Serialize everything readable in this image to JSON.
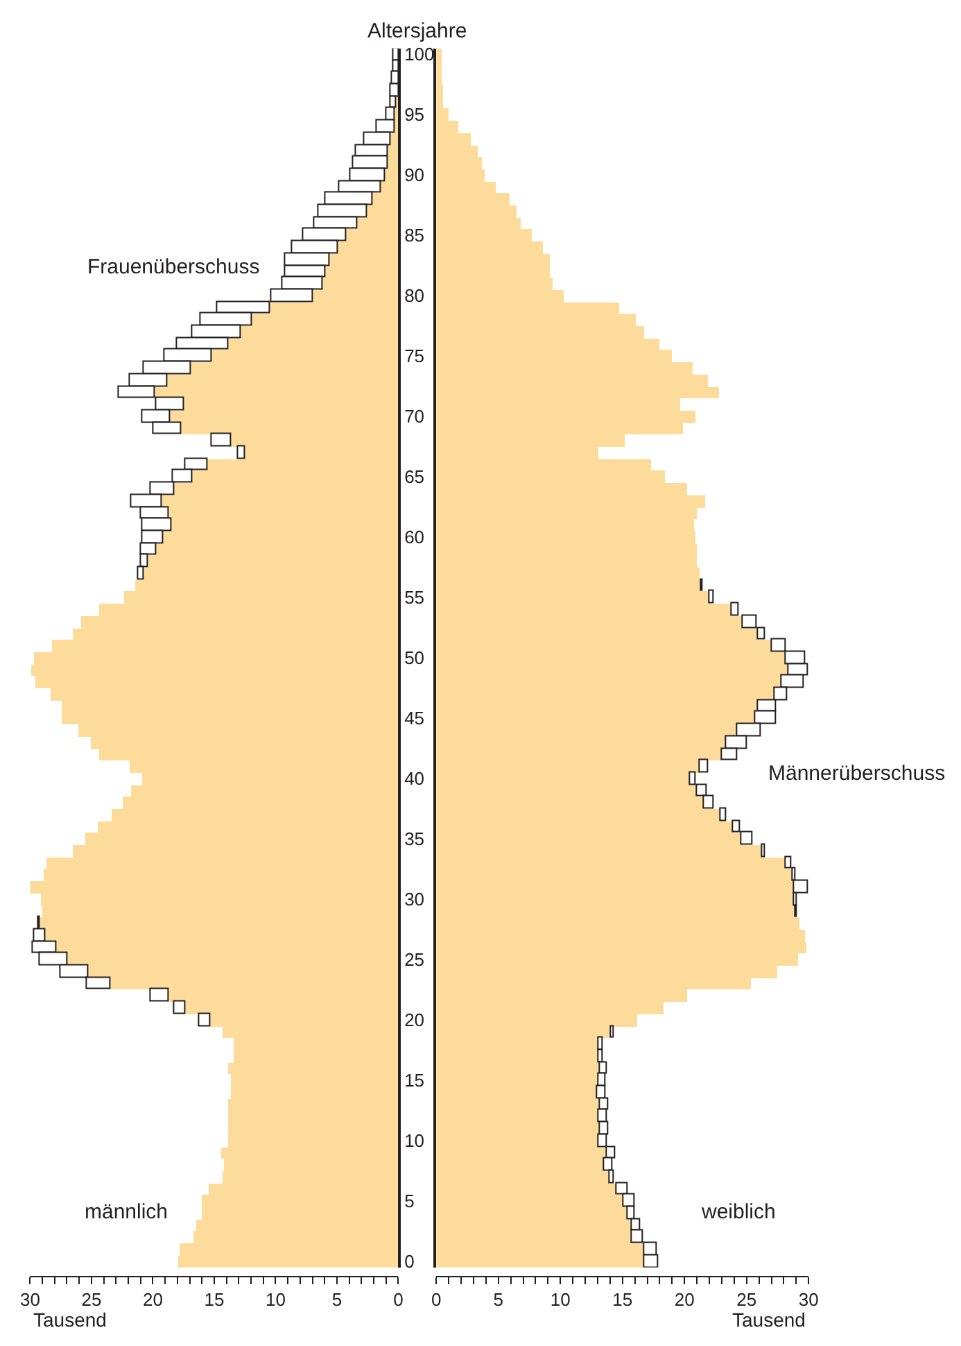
{
  "chart_data": [
    {
      "type": "bar",
      "orientation": "horizontal",
      "stacked": true,
      "xlabel": "Tausend",
      "ylabel": "Altersjahre",
      "categories": [
        "100",
        null,
        null,
        null,
        null,
        "95",
        null,
        null,
        null,
        null,
        "90",
        null,
        null,
        null,
        null,
        "85",
        null,
        null,
        null,
        null,
        "80",
        null,
        null,
        null,
        null,
        "75",
        null,
        null,
        null,
        null,
        "70",
        null,
        null,
        null,
        null,
        "65",
        null,
        null,
        null,
        null,
        "60",
        null,
        null,
        null,
        null,
        "55",
        null,
        null,
        null,
        null,
        "50",
        null,
        null,
        null,
        null,
        "45",
        null,
        null,
        null,
        null,
        "40",
        null,
        null,
        null,
        null,
        "35",
        null,
        null,
        null,
        null,
        "30",
        null,
        null,
        null,
        null,
        "25",
        null,
        null,
        null,
        null,
        "20",
        null,
        null,
        null,
        null,
        "15",
        null,
        null,
        null,
        null,
        "10",
        null,
        null,
        null,
        null,
        "5",
        null,
        null,
        null,
        null,
        "0"
      ],
      "series": [
        {
          "color": "#fddc9b",
          "values": [
            null,
            null,
            null,
            null,
            0.2,
            0.3,
            0.3,
            0.6,
            0.8,
            0.9,
            1.1,
            1.4,
            2.1,
            2.6,
            3.3,
            4.2,
            4.9,
            5.6,
            5.9,
            6.2,
            7.0,
            10.5,
            11.9,
            12.8,
            13.8,
            15.2,
            16.9,
            18.8,
            19.8,
            17.5,
            18.6,
            17.7,
            13.6,
            12.5,
            15.5,
            16.8,
            18.3,
            19.3,
            18.7,
            18.5,
            19.1,
            19.7,
            20.4,
            20.7,
            21.4,
            22.3,
            24.4,
            25.8,
            26.5,
            28.2,
            29.7,
            29.9,
            29.6,
            28.3,
            27.4,
            27.4,
            26.1,
            25.0,
            24.3,
            21.9,
            20.9,
            21.8,
            22.4,
            23.3,
            24.5,
            25.5,
            26.5,
            28.6,
            28.9,
            30.0,
            29.1,
            29.0,
            29.2,
            28.8,
            27.9,
            26.9,
            25.3,
            23.5,
            18.7,
            17.3,
            15.3,
            14.3,
            13.4,
            13.4,
            13.8,
            13.6,
            13.6,
            13.9,
            13.8,
            13.9,
            13.8,
            14.4,
            14.2,
            14.3,
            15.4,
            16.0,
            16.0,
            16.4,
            16.7,
            17.8,
            17.9
          ]
        },
        {
          "color": "#ffffff",
          "values": [
            0.4,
            0.4,
            0.5,
            0.6,
            0.4,
            0.7,
            1.5,
            2.2,
            2.6,
            2.8,
            2.8,
            3.4,
            3.8,
            3.9,
            3.5,
            3.5,
            3.7,
            3.6,
            3.3,
            3.2,
            3.3,
            4.2,
            4.2,
            4.0,
            4.2,
            3.8,
            3.8,
            3.1,
            3.0,
            2.2,
            2.3,
            2.2,
            1.6,
            0.6,
            1.8,
            1.6,
            1.9,
            2.4,
            2.3,
            2.3,
            1.8,
            1.3,
            0.6,
            0.5,
            null,
            null,
            null,
            null,
            null,
            null,
            null,
            null,
            null,
            null,
            null,
            null,
            null,
            null,
            null,
            null,
            null,
            null,
            null,
            null,
            null,
            null,
            null,
            null,
            null,
            null,
            null,
            null,
            0.1,
            0.9,
            1.9,
            2.3,
            2.2,
            1.9,
            1.5,
            1.0,
            0.9,
            null,
            null,
            null,
            null,
            null,
            null,
            null,
            null,
            null,
            null,
            null,
            null,
            null,
            null,
            null,
            null,
            null,
            null,
            null,
            null
          ]
        }
      ],
      "xlim": [
        30,
        0
      ],
      "xticks": [
        0,
        {
          "value": 1,
          "label": null
        },
        {
          "value": 2,
          "label": null
        },
        {
          "value": 3,
          "label": null
        },
        {
          "value": 4,
          "label": null
        },
        5,
        {
          "value": 6,
          "label": null
        },
        {
          "value": 7,
          "label": null
        },
        {
          "value": 8,
          "label": null
        },
        {
          "value": 9,
          "label": null
        },
        10,
        {
          "value": 11,
          "label": null
        },
        {
          "value": 12,
          "label": null
        },
        {
          "value": 13,
          "label": null
        },
        {
          "value": 14,
          "label": null
        },
        15,
        {
          "value": 16,
          "label": null
        },
        {
          "value": 17,
          "label": null
        },
        {
          "value": 18,
          "label": null
        },
        {
          "value": 19,
          "label": null
        },
        20,
        {
          "value": 21,
          "label": null
        },
        {
          "value": 22,
          "label": null
        },
        {
          "value": 23,
          "label": null
        },
        {
          "value": 24,
          "label": null
        },
        25,
        {
          "value": 26,
          "label": null
        },
        {
          "value": 27,
          "label": null
        },
        {
          "value": 28,
          "label": null
        },
        {
          "value": 29,
          "label": null
        },
        30
      ],
      "annotations": [
        "Frauenüberschuss",
        "männlich"
      ]
    },
    {
      "type": "bar",
      "orientation": "horizontal",
      "stacked": true,
      "xlabel": "Tausend",
      "tick_labels": "x",
      "categories": [
        "100",
        null,
        null,
        null,
        null,
        "95",
        null,
        null,
        null,
        null,
        "90",
        null,
        null,
        null,
        null,
        "85",
        null,
        null,
        null,
        null,
        "80",
        null,
        null,
        null,
        null,
        "75",
        null,
        null,
        null,
        null,
        "70",
        null,
        null,
        null,
        null,
        "65",
        null,
        null,
        null,
        null,
        "60",
        null,
        null,
        null,
        null,
        "55",
        null,
        null,
        null,
        null,
        "50",
        null,
        null,
        null,
        null,
        "45",
        null,
        null,
        null,
        null,
        "40",
        null,
        null,
        null,
        null,
        "35",
        null,
        null,
        null,
        null,
        "30",
        null,
        null,
        null,
        null,
        "25",
        null,
        null,
        null,
        null,
        "20",
        null,
        null,
        null,
        null,
        "15",
        null,
        null,
        null,
        null,
        "10",
        null,
        null,
        null,
        null,
        "5",
        null,
        null,
        null,
        null,
        "0"
      ],
      "series": [
        {
          "color": "#fddc9b",
          "values": [
            0.4,
            0.4,
            0.5,
            0.6,
            0.6,
            1.0,
            1.8,
            2.8,
            3.4,
            3.7,
            3.9,
            4.8,
            5.9,
            6.5,
            6.8,
            7.7,
            8.6,
            9.2,
            9.2,
            9.4,
            10.3,
            14.7,
            16.1,
            16.8,
            18.0,
            19.0,
            20.7,
            21.9,
            22.8,
            19.7,
            20.9,
            19.9,
            15.2,
            13.1,
            17.3,
            18.4,
            20.2,
            21.7,
            21.0,
            20.8,
            20.9,
            21.0,
            21.0,
            21.2,
            21.3,
            22.0,
            23.8,
            24.7,
            25.9,
            27.0,
            28.2,
            28.4,
            27.8,
            27.3,
            25.9,
            25.7,
            24.3,
            23.4,
            23.0,
            21.2,
            20.5,
            21.0,
            21.6,
            22.9,
            23.9,
            24.6,
            26.3,
            28.2,
            28.7,
            28.8,
            28.8,
            28.9,
            29.3,
            29.7,
            29.8,
            29.2,
            27.5,
            25.4,
            20.2,
            18.3,
            16.2,
            14.1,
            13.1,
            13.1,
            13.2,
            13.1,
            13.0,
            13.2,
            13.1,
            13.2,
            13.1,
            13.7,
            13.5,
            14.0,
            14.5,
            15.1,
            15.4,
            15.8,
            15.8,
            16.8,
            16.8
          ]
        },
        {
          "color": "#ffffff",
          "values": [
            null,
            null,
            null,
            null,
            null,
            null,
            null,
            null,
            null,
            null,
            null,
            null,
            null,
            null,
            null,
            null,
            null,
            null,
            null,
            null,
            null,
            null,
            null,
            null,
            null,
            null,
            null,
            null,
            null,
            null,
            null,
            null,
            null,
            null,
            null,
            null,
            null,
            null,
            null,
            null,
            null,
            null,
            null,
            null,
            0.1,
            0.3,
            0.6,
            1.1,
            0.6,
            1.2,
            1.5,
            1.5,
            1.8,
            1.0,
            1.5,
            1.7,
            1.8,
            1.6,
            1.3,
            0.7,
            0.4,
            0.8,
            0.8,
            0.4,
            0.6,
            0.9,
            0.2,
            0.4,
            0.2,
            1.2,
            0.3,
            0.1,
            null,
            null,
            null,
            null,
            null,
            null,
            null,
            null,
            null,
            0.2,
            0.3,
            0.3,
            0.6,
            0.5,
            0.6,
            0.7,
            0.7,
            0.7,
            0.7,
            0.7,
            0.7,
            0.3,
            0.9,
            0.9,
            0.6,
            0.6,
            0.9,
            1.0,
            1.1
          ]
        }
      ],
      "xlim": [
        0,
        30
      ],
      "xticks": [
        0,
        {
          "value": 1,
          "label": null
        },
        {
          "value": 2,
          "label": null
        },
        {
          "value": 3,
          "label": null
        },
        {
          "value": 4,
          "label": null
        },
        5,
        {
          "value": 6,
          "label": null
        },
        {
          "value": 7,
          "label": null
        },
        {
          "value": 8,
          "label": null
        },
        {
          "value": 9,
          "label": null
        },
        10,
        {
          "value": 11,
          "label": null
        },
        {
          "value": 12,
          "label": null
        },
        {
          "value": 13,
          "label": null
        },
        {
          "value": 14,
          "label": null
        },
        15,
        {
          "value": 16,
          "label": null
        },
        {
          "value": 17,
          "label": null
        },
        {
          "value": 18,
          "label": null
        },
        {
          "value": 19,
          "label": null
        },
        20,
        {
          "value": 21,
          "label": null
        },
        {
          "value": 22,
          "label": null
        },
        {
          "value": 23,
          "label": null
        },
        {
          "value": 24,
          "label": null
        },
        25,
        {
          "value": 26,
          "label": null
        },
        {
          "value": 27,
          "label": null
        },
        {
          "value": 28,
          "label": null
        },
        {
          "value": 29,
          "label": null
        },
        30
      ],
      "annotations": [
        "Männerüberschuss",
        "weiblich"
      ]
    }
  ]
}
